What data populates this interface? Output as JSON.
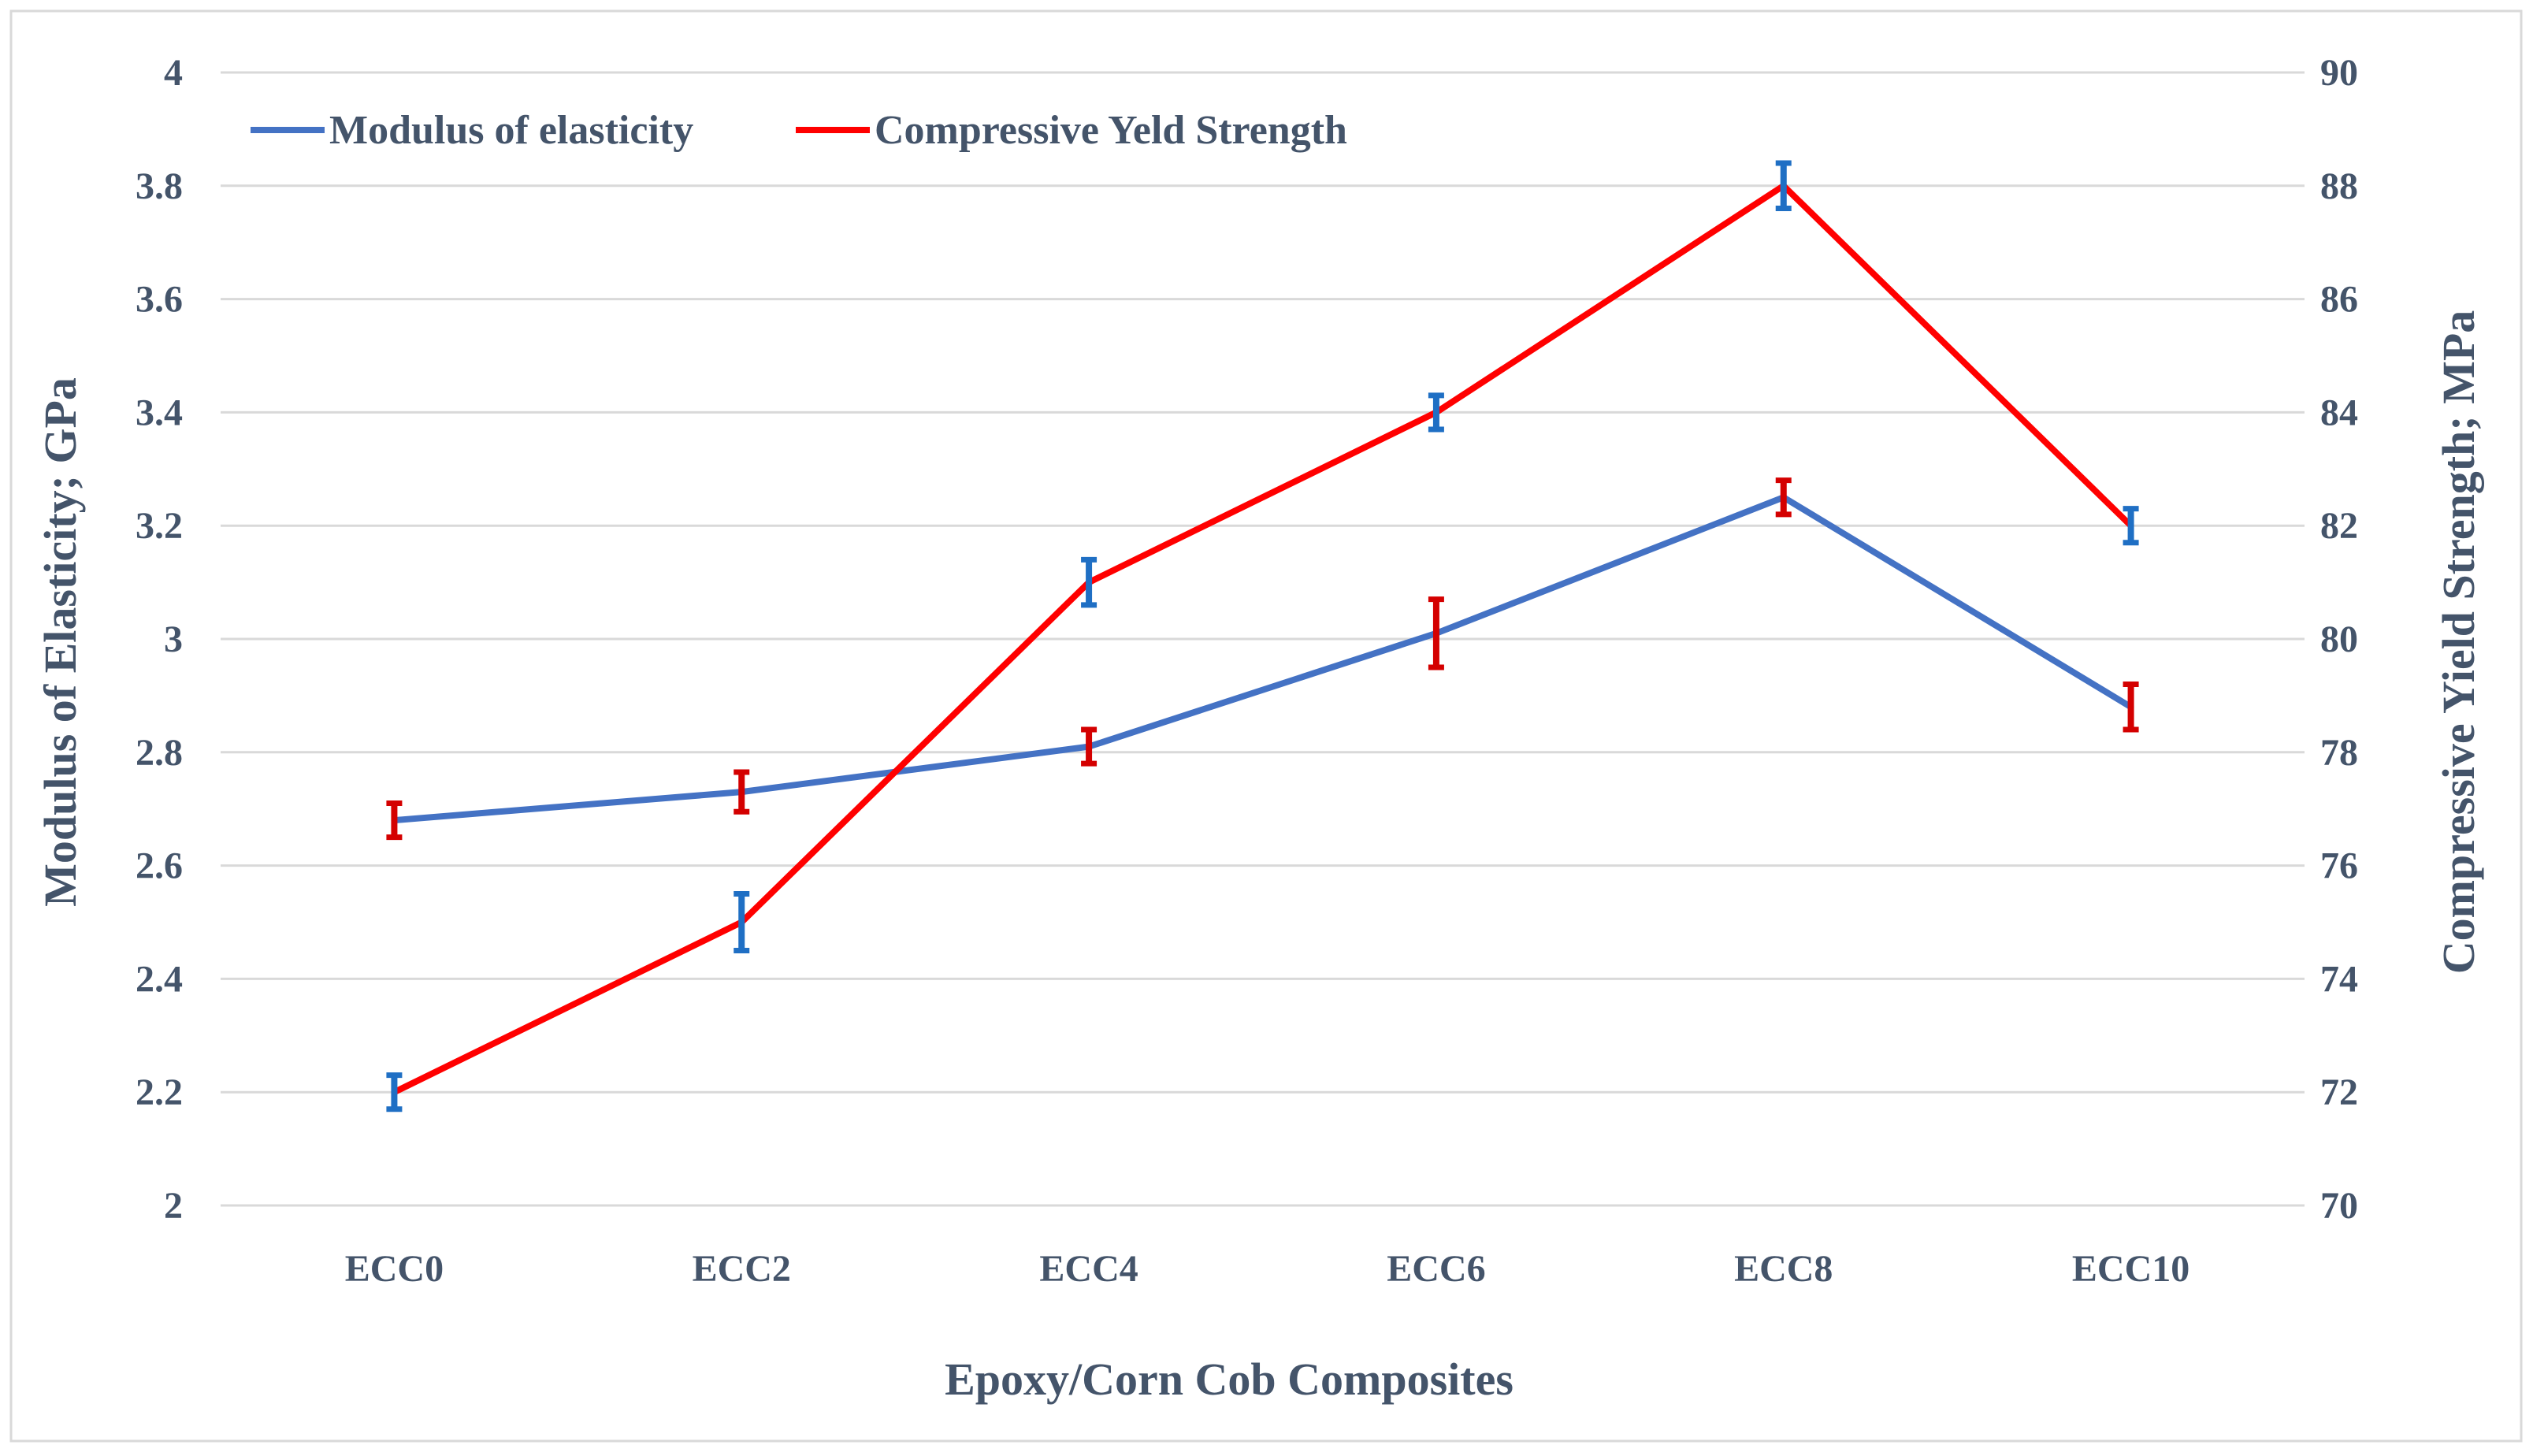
{
  "chart_data": {
    "type": "line",
    "title": "",
    "xlabel": "Epoxy/Corn Cob Composites",
    "ylabel_left": "Modulus of Elasticity; GPa",
    "ylabel_right": "Compressive Yield Strength; MPa",
    "categories": [
      "ECC0",
      "ECC2",
      "ECC4",
      "ECC6",
      "ECC8",
      "ECC10"
    ],
    "y_left": {
      "min": 2,
      "max": 4,
      "step": 0.2,
      "ticks": [
        "2",
        "2.2",
        "2.4",
        "2.6",
        "2.8",
        "3",
        "3.2",
        "3.4",
        "3.6",
        "3.8",
        "4"
      ]
    },
    "y_right": {
      "min": 70,
      "max": 90,
      "step": 2,
      "ticks": [
        "70",
        "72",
        "74",
        "76",
        "78",
        "80",
        "82",
        "84",
        "86",
        "88",
        "90"
      ]
    },
    "grid": true,
    "legend_position": "top-left",
    "series": [
      {
        "name": "Modulus of elasticity",
        "axis": "left",
        "color": "#4472c4",
        "values": [
          2.68,
          2.73,
          2.81,
          3.01,
          3.25,
          2.88
        ],
        "error_color": "#d40000",
        "errors": [
          0.03,
          0.035,
          0.03,
          0.06,
          0.03,
          0.04
        ]
      },
      {
        "name": "Compressive Yeld Strength",
        "axis": "right",
        "color": "#ff0000",
        "values": [
          72,
          75,
          81,
          84,
          88,
          82
        ],
        "error_color": "#1f6fc4",
        "errors": [
          0.3,
          0.5,
          0.4,
          0.3,
          0.4,
          0.3
        ]
      }
    ]
  }
}
